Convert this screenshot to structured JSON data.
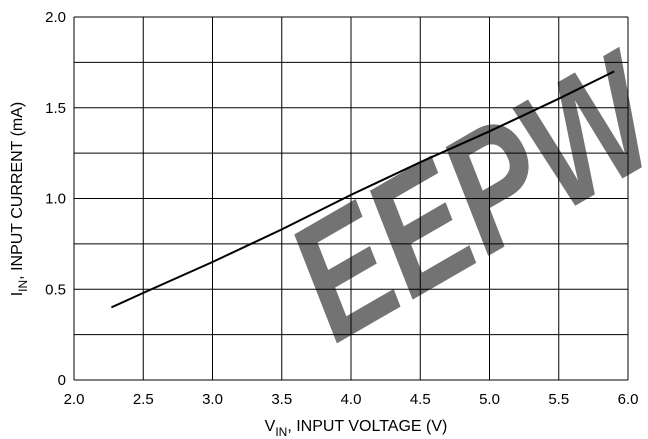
{
  "chart_data": {
    "type": "line",
    "title": "",
    "xlabel": {
      "main": "V",
      "sub": "IN",
      "rest": ", INPUT VOLTAGE (V)"
    },
    "ylabel": {
      "main": "I",
      "sub": "IN",
      "rest": ", INPUT CURRENT (mA)"
    },
    "xlim": [
      2.0,
      6.0
    ],
    "ylim": [
      0,
      2.0
    ],
    "x_ticks": [
      "2.0",
      "2.5",
      "3.0",
      "3.5",
      "4.0",
      "4.5",
      "5.0",
      "5.5",
      "6.0"
    ],
    "y_ticks": [
      "0",
      "0.5",
      "1.0",
      "1.5",
      "2.0"
    ],
    "grid": true,
    "series": [
      {
        "color": "#000000",
        "x": [
          2.27,
          2.5,
          3.0,
          3.5,
          4.0,
          4.5,
          5.0,
          5.5,
          5.9
        ],
        "y": [
          0.4,
          0.48,
          0.65,
          0.83,
          1.02,
          1.2,
          1.37,
          1.55,
          1.7
        ]
      }
    ]
  },
  "watermark": {
    "text": "EEPW",
    "color": "#e02030"
  }
}
